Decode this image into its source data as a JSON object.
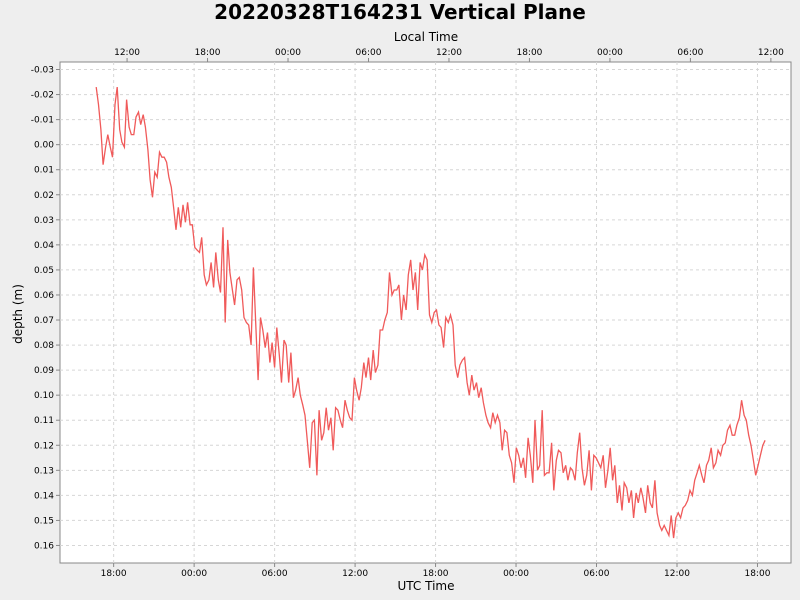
{
  "chart_data": {
    "type": "line",
    "title": "20220328T164231 Vertical Plane",
    "xlabel": "UTC Time",
    "x2label": "Local Time",
    "ylabel": "depth (m)",
    "y_inverted": true,
    "ylim": [
      -0.033,
      0.167
    ],
    "xlim": [
      "2022-03-28T14:00",
      "2022-03-30T20:30"
    ],
    "grid": true,
    "line_color": "#f05a5a",
    "x_ticks": [
      "18:00",
      "00:00",
      "06:00",
      "12:00",
      "18:00",
      "00:00",
      "06:00",
      "12:00",
      "18:00"
    ],
    "x_tick_times": [
      "2022-03-28T18:00",
      "2022-03-29T00:00",
      "2022-03-29T06:00",
      "2022-03-29T12:00",
      "2022-03-29T18:00",
      "2022-03-30T00:00",
      "2022-03-30T06:00",
      "2022-03-30T12:00",
      "2022-03-30T18:00"
    ],
    "x2_ticks": [
      "12:00",
      "18:00",
      "00:00",
      "06:00",
      "12:00",
      "18:00",
      "00:00",
      "06:00",
      "12:00"
    ],
    "x2_tick_times": [
      "2022-03-28T19:00",
      "2022-03-29T01:00",
      "2022-03-29T07:00",
      "2022-03-29T13:00",
      "2022-03-29T19:00",
      "2022-03-30T01:00",
      "2022-03-30T07:00",
      "2022-03-30T13:00",
      "2022-03-30T19:00"
    ],
    "y_ticks": [
      "-0.03",
      "-0.02",
      "-0.01",
      "0.00",
      "0.01",
      "0.02",
      "0.03",
      "0.04",
      "0.05",
      "0.06",
      "0.07",
      "0.08",
      "0.09",
      "0.10",
      "0.11",
      "0.12",
      "0.13",
      "0.14",
      "0.15",
      "0.16"
    ],
    "y_tick_values": [
      -0.03,
      -0.02,
      -0.01,
      0.0,
      0.01,
      0.02,
      0.03,
      0.04,
      0.05,
      0.06,
      0.07,
      0.08,
      0.09,
      0.1,
      0.11,
      0.12,
      0.13,
      0.14,
      0.15,
      0.16
    ],
    "series": [
      {
        "x": [
          "2022-03-28T16:42",
          "2022-03-28T16:52",
          "2022-03-28T17:03",
          "2022-03-28T17:13",
          "2022-03-28T17:24",
          "2022-03-28T17:34",
          "2022-03-28T17:45",
          "2022-03-28T17:55",
          "2022-03-28T18:06",
          "2022-03-28T18:16",
          "2022-03-28T18:27",
          "2022-03-28T18:37",
          "2022-03-28T18:48",
          "2022-03-28T18:58",
          "2022-03-28T19:09",
          "2022-03-28T19:19",
          "2022-03-28T19:30",
          "2022-03-28T19:40",
          "2022-03-28T19:51",
          "2022-03-28T20:01",
          "2022-03-28T20:12",
          "2022-03-28T20:22",
          "2022-03-28T20:33",
          "2022-03-28T20:43",
          "2022-03-28T20:54",
          "2022-03-28T21:04",
          "2022-03-28T21:15",
          "2022-03-28T21:25",
          "2022-03-28T21:36",
          "2022-03-28T21:46",
          "2022-03-28T21:57",
          "2022-03-28T22:07",
          "2022-03-28T22:18",
          "2022-03-28T22:28",
          "2022-03-28T22:39",
          "2022-03-28T22:49",
          "2022-03-28T23:00",
          "2022-03-28T23:10",
          "2022-03-28T23:21",
          "2022-03-28T23:31",
          "2022-03-28T23:42",
          "2022-03-28T23:52",
          "2022-03-29T00:03",
          "2022-03-29T00:13",
          "2022-03-29T00:24",
          "2022-03-29T00:34",
          "2022-03-29T00:45",
          "2022-03-29T00:55",
          "2022-03-29T01:06",
          "2022-03-29T01:16",
          "2022-03-29T01:27",
          "2022-03-29T01:37",
          "2022-03-29T01:48",
          "2022-03-29T01:58",
          "2022-03-29T02:09",
          "2022-03-29T02:19",
          "2022-03-29T02:30",
          "2022-03-29T02:40",
          "2022-03-29T02:51",
          "2022-03-29T03:01",
          "2022-03-29T03:12",
          "2022-03-29T03:22",
          "2022-03-29T03:33",
          "2022-03-29T03:43",
          "2022-03-29T03:54",
          "2022-03-29T04:04",
          "2022-03-29T04:15",
          "2022-03-29T04:25",
          "2022-03-29T04:36",
          "2022-03-29T04:46",
          "2022-03-29T04:57",
          "2022-03-29T05:07",
          "2022-03-29T05:18",
          "2022-03-29T05:28",
          "2022-03-29T05:39",
          "2022-03-29T05:49",
          "2022-03-29T06:00",
          "2022-03-29T06:10",
          "2022-03-29T06:21",
          "2022-03-29T06:31",
          "2022-03-29T06:42",
          "2022-03-29T06:52",
          "2022-03-29T07:03",
          "2022-03-29T07:13",
          "2022-03-29T07:24",
          "2022-03-29T07:34",
          "2022-03-29T07:45",
          "2022-03-29T07:55",
          "2022-03-29T08:06",
          "2022-03-29T08:16",
          "2022-03-29T08:27",
          "2022-03-29T08:37",
          "2022-03-29T08:48",
          "2022-03-29T08:58",
          "2022-03-29T09:09",
          "2022-03-29T09:19",
          "2022-03-29T09:30",
          "2022-03-29T09:40",
          "2022-03-29T09:51",
          "2022-03-29T10:01",
          "2022-03-29T10:12",
          "2022-03-29T10:22",
          "2022-03-29T10:33",
          "2022-03-29T10:43",
          "2022-03-29T10:54",
          "2022-03-29T11:04",
          "2022-03-29T11:15",
          "2022-03-29T11:25",
          "2022-03-29T11:36",
          "2022-03-29T11:46",
          "2022-03-29T11:57",
          "2022-03-29T12:07",
          "2022-03-29T12:18",
          "2022-03-29T12:28",
          "2022-03-29T12:39",
          "2022-03-29T12:49",
          "2022-03-29T13:00",
          "2022-03-29T13:10",
          "2022-03-29T13:21",
          "2022-03-29T13:31",
          "2022-03-29T13:42",
          "2022-03-29T13:52",
          "2022-03-29T14:03",
          "2022-03-29T14:13",
          "2022-03-29T14:24",
          "2022-03-29T14:34",
          "2022-03-29T14:45",
          "2022-03-29T14:55",
          "2022-03-29T15:06",
          "2022-03-29T15:16",
          "2022-03-29T15:27",
          "2022-03-29T15:37",
          "2022-03-29T15:48",
          "2022-03-29T15:58",
          "2022-03-29T16:09",
          "2022-03-29T16:19",
          "2022-03-29T16:30",
          "2022-03-29T16:40",
          "2022-03-29T16:51",
          "2022-03-29T17:01",
          "2022-03-29T17:12",
          "2022-03-29T17:22",
          "2022-03-29T17:33",
          "2022-03-29T17:43",
          "2022-03-29T17:54",
          "2022-03-29T18:04",
          "2022-03-29T18:15",
          "2022-03-29T18:25",
          "2022-03-29T18:36",
          "2022-03-29T18:46",
          "2022-03-29T18:57",
          "2022-03-29T19:07",
          "2022-03-29T19:18",
          "2022-03-29T19:28",
          "2022-03-29T19:39",
          "2022-03-29T19:49",
          "2022-03-29T20:00",
          "2022-03-29T20:10",
          "2022-03-29T20:21",
          "2022-03-29T20:31",
          "2022-03-29T20:42",
          "2022-03-29T20:52",
          "2022-03-29T21:03",
          "2022-03-29T21:13",
          "2022-03-29T21:24",
          "2022-03-29T21:34",
          "2022-03-29T21:45",
          "2022-03-29T21:55",
          "2022-03-29T22:06",
          "2022-03-29T22:16",
          "2022-03-29T22:27",
          "2022-03-29T22:37",
          "2022-03-29T22:48",
          "2022-03-29T22:58",
          "2022-03-29T23:09",
          "2022-03-29T23:19",
          "2022-03-29T23:30",
          "2022-03-29T23:40",
          "2022-03-29T23:51",
          "2022-03-30T00:01",
          "2022-03-30T00:12",
          "2022-03-30T00:22",
          "2022-03-30T00:33",
          "2022-03-30T00:43",
          "2022-03-30T00:54",
          "2022-03-30T01:04",
          "2022-03-30T01:15",
          "2022-03-30T01:25",
          "2022-03-30T01:36",
          "2022-03-30T01:46",
          "2022-03-30T01:57",
          "2022-03-30T02:07",
          "2022-03-30T02:18",
          "2022-03-30T02:28",
          "2022-03-30T02:39",
          "2022-03-30T02:49",
          "2022-03-30T03:00",
          "2022-03-30T03:10",
          "2022-03-30T03:21",
          "2022-03-30T03:31",
          "2022-03-30T03:42",
          "2022-03-30T03:52",
          "2022-03-30T04:03",
          "2022-03-30T04:13",
          "2022-03-30T04:24",
          "2022-03-30T04:34",
          "2022-03-30T04:45",
          "2022-03-30T04:55",
          "2022-03-30T05:06",
          "2022-03-30T05:16",
          "2022-03-30T05:27",
          "2022-03-30T05:37",
          "2022-03-30T05:48",
          "2022-03-30T05:58",
          "2022-03-30T06:09",
          "2022-03-30T06:19",
          "2022-03-30T06:30",
          "2022-03-30T06:40",
          "2022-03-30T06:51",
          "2022-03-30T07:01",
          "2022-03-30T07:12",
          "2022-03-30T07:22",
          "2022-03-30T07:33",
          "2022-03-30T07:43",
          "2022-03-30T07:54",
          "2022-03-30T08:04",
          "2022-03-30T08:15",
          "2022-03-30T08:25",
          "2022-03-30T08:36",
          "2022-03-30T08:46",
          "2022-03-30T08:57",
          "2022-03-30T09:07",
          "2022-03-30T09:18",
          "2022-03-30T09:28",
          "2022-03-30T09:39",
          "2022-03-30T09:49",
          "2022-03-30T10:00",
          "2022-03-30T10:10",
          "2022-03-30T10:21",
          "2022-03-30T10:31",
          "2022-03-30T10:42",
          "2022-03-30T10:52",
          "2022-03-30T11:03",
          "2022-03-30T11:13",
          "2022-03-30T11:24",
          "2022-03-30T11:34",
          "2022-03-30T11:45",
          "2022-03-30T11:55",
          "2022-03-30T12:06",
          "2022-03-30T12:16",
          "2022-03-30T12:27",
          "2022-03-30T12:37",
          "2022-03-30T12:48",
          "2022-03-30T12:58",
          "2022-03-30T13:09",
          "2022-03-30T13:19",
          "2022-03-30T13:30",
          "2022-03-30T13:40",
          "2022-03-30T13:51",
          "2022-03-30T14:01",
          "2022-03-30T14:12",
          "2022-03-30T14:22",
          "2022-03-30T14:33",
          "2022-03-30T14:43",
          "2022-03-30T14:54",
          "2022-03-30T15:04",
          "2022-03-30T15:15",
          "2022-03-30T15:25",
          "2022-03-30T15:36",
          "2022-03-30T15:46",
          "2022-03-30T15:57",
          "2022-03-30T16:07",
          "2022-03-30T16:18",
          "2022-03-30T16:28",
          "2022-03-30T16:39",
          "2022-03-30T16:49",
          "2022-03-30T17:00",
          "2022-03-30T17:10",
          "2022-03-30T17:21",
          "2022-03-30T17:31",
          "2022-03-30T17:42",
          "2022-03-30T17:52",
          "2022-03-30T18:03",
          "2022-03-30T18:13",
          "2022-03-30T18:24",
          "2022-03-30T18:34"
        ],
        "y": [
          -0.023,
          -0.016,
          -0.006,
          0.008,
          0.001,
          -0.004,
          0.001,
          0.005,
          -0.016,
          -0.023,
          -0.006,
          -0.001,
          0.001,
          -0.018,
          -0.007,
          -0.004,
          -0.004,
          -0.011,
          -0.013,
          -0.008,
          -0.012,
          -0.007,
          0.002,
          0.014,
          0.021,
          0.011,
          0.013,
          0.003,
          0.005,
          0.005,
          0.007,
          0.013,
          0.017,
          0.025,
          0.034,
          0.025,
          0.033,
          0.024,
          0.031,
          0.023,
          0.032,
          0.032,
          0.041,
          0.042,
          0.043,
          0.037,
          0.052,
          0.056,
          0.054,
          0.047,
          0.057,
          0.043,
          0.054,
          0.059,
          0.033,
          0.071,
          0.038,
          0.051,
          0.058,
          0.064,
          0.054,
          0.053,
          0.058,
          0.069,
          0.071,
          0.072,
          0.08,
          0.049,
          0.072,
          0.094,
          0.069,
          0.074,
          0.081,
          0.075,
          0.087,
          0.079,
          0.089,
          0.073,
          0.084,
          0.095,
          0.078,
          0.08,
          0.095,
          0.083,
          0.101,
          0.098,
          0.093,
          0.1,
          0.104,
          0.108,
          0.119,
          0.129,
          0.111,
          0.11,
          0.132,
          0.106,
          0.118,
          0.115,
          0.105,
          0.114,
          0.109,
          0.122,
          0.105,
          0.106,
          0.11,
          0.113,
          0.102,
          0.106,
          0.109,
          0.11,
          0.093,
          0.098,
          0.102,
          0.097,
          0.087,
          0.093,
          0.085,
          0.094,
          0.082,
          0.091,
          0.088,
          0.074,
          0.074,
          0.07,
          0.067,
          0.051,
          0.06,
          0.058,
          0.058,
          0.056,
          0.07,
          0.06,
          0.066,
          0.052,
          0.046,
          0.058,
          0.051,
          0.066,
          0.047,
          0.05,
          0.044,
          0.046,
          0.068,
          0.071,
          0.067,
          0.066,
          0.072,
          0.073,
          0.081,
          0.069,
          0.071,
          0.068,
          0.072,
          0.088,
          0.093,
          0.088,
          0.086,
          0.085,
          0.095,
          0.1,
          0.092,
          0.098,
          0.095,
          0.101,
          0.097,
          0.103,
          0.108,
          0.111,
          0.113,
          0.107,
          0.111,
          0.108,
          0.111,
          0.122,
          0.114,
          0.115,
          0.124,
          0.127,
          0.135,
          0.121,
          0.124,
          0.129,
          0.125,
          0.133,
          0.117,
          0.124,
          0.135,
          0.11,
          0.13,
          0.128,
          0.106,
          0.132,
          0.131,
          0.131,
          0.119,
          0.138,
          0.126,
          0.122,
          0.123,
          0.131,
          0.128,
          0.134,
          0.129,
          0.13,
          0.134,
          0.123,
          0.115,
          0.129,
          0.136,
          0.132,
          0.122,
          0.138,
          0.124,
          0.125,
          0.127,
          0.129,
          0.124,
          0.137,
          0.13,
          0.121,
          0.134,
          0.128,
          0.143,
          0.136,
          0.146,
          0.135,
          0.137,
          0.143,
          0.138,
          0.149,
          0.139,
          0.143,
          0.137,
          0.141,
          0.147,
          0.136,
          0.143,
          0.145,
          0.134,
          0.147,
          0.152,
          0.154,
          0.152,
          0.154,
          0.156,
          0.148,
          0.157,
          0.149,
          0.147,
          0.149,
          0.145,
          0.144,
          0.142,
          0.138,
          0.14,
          0.134,
          0.131,
          0.128,
          0.132,
          0.135,
          0.128,
          0.126,
          0.121,
          0.129,
          0.127,
          0.122,
          0.124,
          0.12,
          0.119,
          0.114,
          0.112,
          0.116,
          0.116,
          0.112,
          0.109,
          0.102,
          0.108,
          0.11,
          0.116,
          0.12,
          0.126,
          0.132,
          0.128,
          0.124,
          0.12,
          0.118
        ]
      }
    ]
  }
}
